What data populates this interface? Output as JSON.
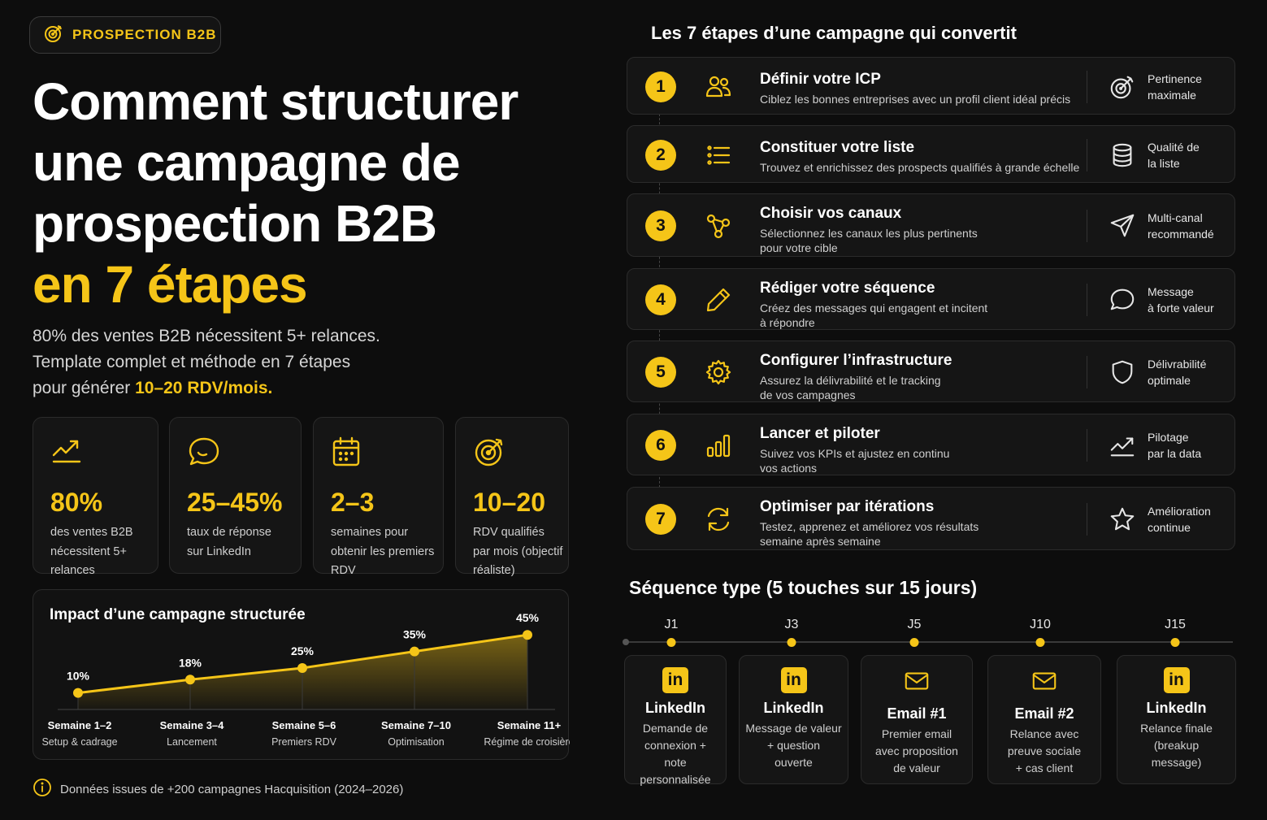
{
  "badge": {
    "label": "PROSPECTION B2B",
    "icon": "target-icon"
  },
  "hero": {
    "line1": "Comment structurer",
    "line2": "une campagne de",
    "line3": "prospection B2B",
    "line4": "en 7 étapes"
  },
  "subtitle": {
    "line1": "80% des ventes B2B nécessitent 5+ relances.",
    "line2": "Template complet et méthode en 7 étapes",
    "line3_prefix": "pour générer ",
    "line3_highlight": "10–20 RDV/mois."
  },
  "stats": [
    {
      "icon": "trend-up-icon",
      "value": "80%",
      "d1": "des ventes B2B",
      "d2": "nécessitent 5+",
      "d3": "relances"
    },
    {
      "icon": "chat-icon",
      "value": "25–45%",
      "d1": "taux de réponse",
      "d2": "sur LinkedIn",
      "d3": ""
    },
    {
      "icon": "calendar-icon",
      "value": "2–3",
      "d1": "semaines pour",
      "d2": "obtenir les premiers",
      "d3": "RDV"
    },
    {
      "icon": "target-icon",
      "value": "10–20",
      "d1": "RDV qualifiés",
      "d2": "par mois (objectif",
      "d3": "réaliste)"
    }
  ],
  "impact": {
    "title": "Impact d’une campagne structurée"
  },
  "chart_data": {
    "type": "area",
    "categories": [
      "Semaine 1–2",
      "Semaine 3–4",
      "Semaine 5–6",
      "Semaine 7–10",
      "Semaine 11+"
    ],
    "sublabels": [
      "Setup & cadrage",
      "Lancement",
      "Premiers RDV",
      "Optimisation",
      "Régime de croisière"
    ],
    "values": [
      10,
      18,
      25,
      35,
      45
    ],
    "value_labels": [
      "10%",
      "18%",
      "25%",
      "35%",
      "45%"
    ],
    "ylim": [
      0,
      50
    ],
    "color": "#f5c518"
  },
  "footer": {
    "text": "Données issues de +200 campagnes Hacquisition (2024–2026)",
    "icon": "info-icon"
  },
  "steps_title": "Les 7 étapes d’une campagne qui convertit",
  "steps": [
    {
      "num": "1",
      "icon": "users-icon",
      "title": "Définir votre ICP",
      "desc1": "Ciblez les bonnes entreprises avec un profil client idéal précis",
      "desc2": "",
      "benefit_icon": "target-icon",
      "b1": "Pertinence",
      "b2": "maximale"
    },
    {
      "num": "2",
      "icon": "list-icon",
      "title": "Constituer votre liste",
      "desc1": "Trouvez et enrichissez des prospects qualifiés à grande échelle",
      "desc2": "",
      "benefit_icon": "database-icon",
      "b1": "Qualité de",
      "b2": "la liste"
    },
    {
      "num": "3",
      "icon": "share-icon",
      "title": "Choisir vos canaux",
      "desc1": "Sélectionnez les canaux les plus pertinents",
      "desc2": "pour votre cible",
      "benefit_icon": "send-icon",
      "b1": "Multi-canal",
      "b2": "recommandé"
    },
    {
      "num": "4",
      "icon": "pencil-icon",
      "title": "Rédiger votre séquence",
      "desc1": "Créez des messages qui engagent et incitent",
      "desc2": "à répondre",
      "benefit_icon": "chat-icon",
      "b1": "Message",
      "b2": "à forte valeur"
    },
    {
      "num": "5",
      "icon": "gear-icon",
      "title": "Configurer l’infrastructure",
      "desc1": "Assurez la délivrabilité et le tracking",
      "desc2": "de vos campagnes",
      "benefit_icon": "shield-icon",
      "b1": "Délivrabilité",
      "b2": "optimale"
    },
    {
      "num": "6",
      "icon": "bar-chart-icon",
      "title": "Lancer et piloter",
      "desc1": "Suivez vos KPIs et ajustez en continu",
      "desc2": "vos actions",
      "benefit_icon": "trend-up-icon",
      "b1": "Pilotage",
      "b2": "par la data"
    },
    {
      "num": "7",
      "icon": "refresh-icon",
      "title": "Optimiser par itérations",
      "desc1": "Testez, apprenez et améliorez vos résultats",
      "desc2": "semaine après semaine",
      "benefit_icon": "star-icon",
      "b1": "Amélioration",
      "b2": "continue"
    }
  ],
  "sequence": {
    "title": "Séquence type (5 touches sur 15 jours)",
    "touches": [
      {
        "day": "J1",
        "icon": "linkedin-icon",
        "title": "LinkedIn",
        "d1": "Demande de",
        "d2": "connexion +",
        "d3": "note personnalisée"
      },
      {
        "day": "J3",
        "icon": "linkedin-icon",
        "title": "LinkedIn",
        "d1": "Message de valeur",
        "d2": "+ question",
        "d3": "ouverte"
      },
      {
        "day": "J5",
        "icon": "mail-icon",
        "title": "Email #1",
        "d1": "Premier email",
        "d2": "avec proposition",
        "d3": "de valeur"
      },
      {
        "day": "J10",
        "icon": "mail-icon",
        "title": "Email #2",
        "d1": "Relance avec",
        "d2": "preuve sociale",
        "d3": "+ cas client"
      },
      {
        "day": "J15",
        "icon": "linkedin-icon",
        "title": "LinkedIn",
        "d1": "Relance finale",
        "d2": "(breakup",
        "d3": "message)"
      }
    ],
    "linkedin_glyph": "in"
  }
}
